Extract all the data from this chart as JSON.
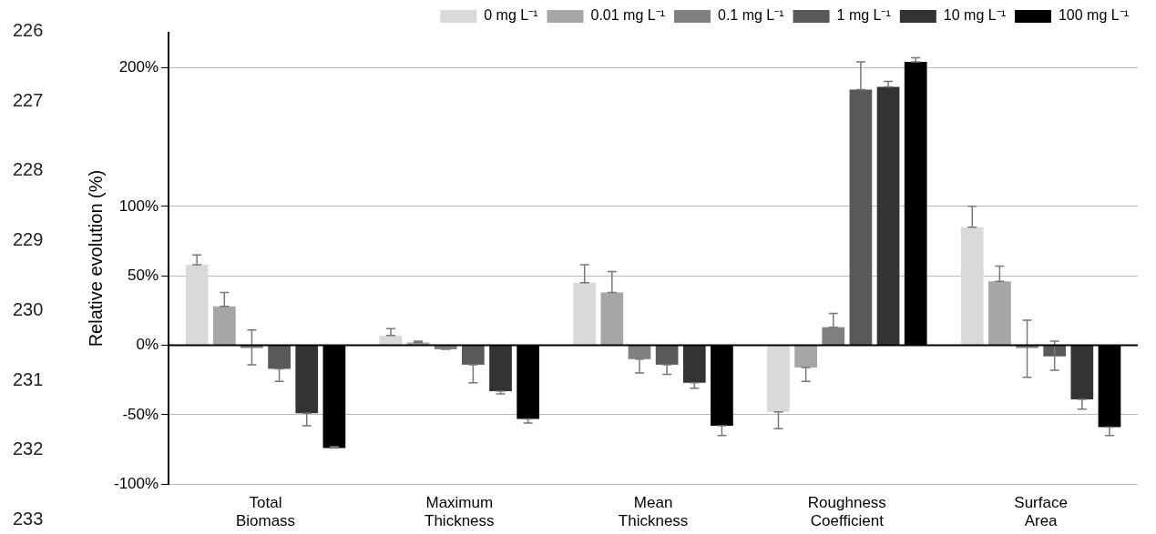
{
  "chart_data": {
    "type": "bar",
    "ylabel": "Relative evolution (%)",
    "categories": [
      "Total Biomass",
      "Maximum Thickness",
      "Mean Thickness",
      "Roughness Coefficient",
      "Surface Area"
    ],
    "series": [
      {
        "name": "0 mg L⁻¹",
        "color": "#d9d9d9",
        "values": [
          58,
          7,
          45,
          -48,
          85
        ],
        "errors": [
          [
            58,
            65
          ],
          [
            7,
            12
          ],
          [
            45,
            58
          ],
          [
            -60,
            -48
          ],
          [
            85,
            100
          ]
        ]
      },
      {
        "name": "0.01 mg L⁻¹",
        "color": "#a6a6a6",
        "values": [
          28,
          2,
          38,
          -16,
          46
        ],
        "errors": [
          [
            28,
            38
          ],
          [
            2,
            3
          ],
          [
            38,
            53
          ],
          [
            -26,
            -16
          ],
          [
            46,
            57
          ]
        ]
      },
      {
        "name": "0.1 mg L⁻¹",
        "color": "#808080",
        "values": [
          -2,
          -3,
          -10,
          13,
          -2
        ],
        "errors": [
          [
            -14,
            11
          ],
          [
            -3,
            -2
          ],
          [
            -20,
            -10
          ],
          [
            13,
            23
          ],
          [
            -23,
            18
          ]
        ]
      },
      {
        "name": "1 mg L⁻¹",
        "color": "#595959",
        "values": [
          -17,
          -14,
          -14,
          184,
          -8
        ],
        "errors": [
          [
            -26,
            -17
          ],
          [
            -27,
            -14
          ],
          [
            -21,
            -14
          ],
          [
            184,
            204
          ],
          [
            -18,
            3
          ]
        ]
      },
      {
        "name": "10 mg L⁻¹",
        "color": "#333333",
        "values": [
          -49,
          -33,
          -27,
          186,
          -39
        ],
        "errors": [
          [
            -58,
            -49
          ],
          [
            -35,
            -33
          ],
          [
            -31,
            -27
          ],
          [
            186,
            190
          ],
          [
            -46,
            -39
          ]
        ]
      },
      {
        "name": "100 mg L⁻¹",
        "color": "#000000",
        "values": [
          -74,
          -53,
          -58,
          204,
          -59
        ],
        "errors": [
          [
            -74,
            -73
          ],
          [
            -56,
            -53
          ],
          [
            -65,
            -58
          ],
          [
            204,
            207
          ],
          [
            -65,
            -59
          ]
        ]
      }
    ],
    "ylim": [
      -100,
      225
    ],
    "yticks": [
      {
        "value": -100,
        "label": "-100%"
      },
      {
        "value": -50,
        "label": "-50%"
      },
      {
        "value": 0,
        "label": "0%"
      },
      {
        "value": 50,
        "label": "50%"
      },
      {
        "value": 100,
        "label": "100%"
      },
      {
        "value": 200,
        "label": "200%"
      }
    ],
    "grid": "y",
    "legend": "top",
    "annotations": [
      "226",
      "227",
      "228",
      "229",
      "230",
      "231",
      "232",
      "233"
    ]
  }
}
